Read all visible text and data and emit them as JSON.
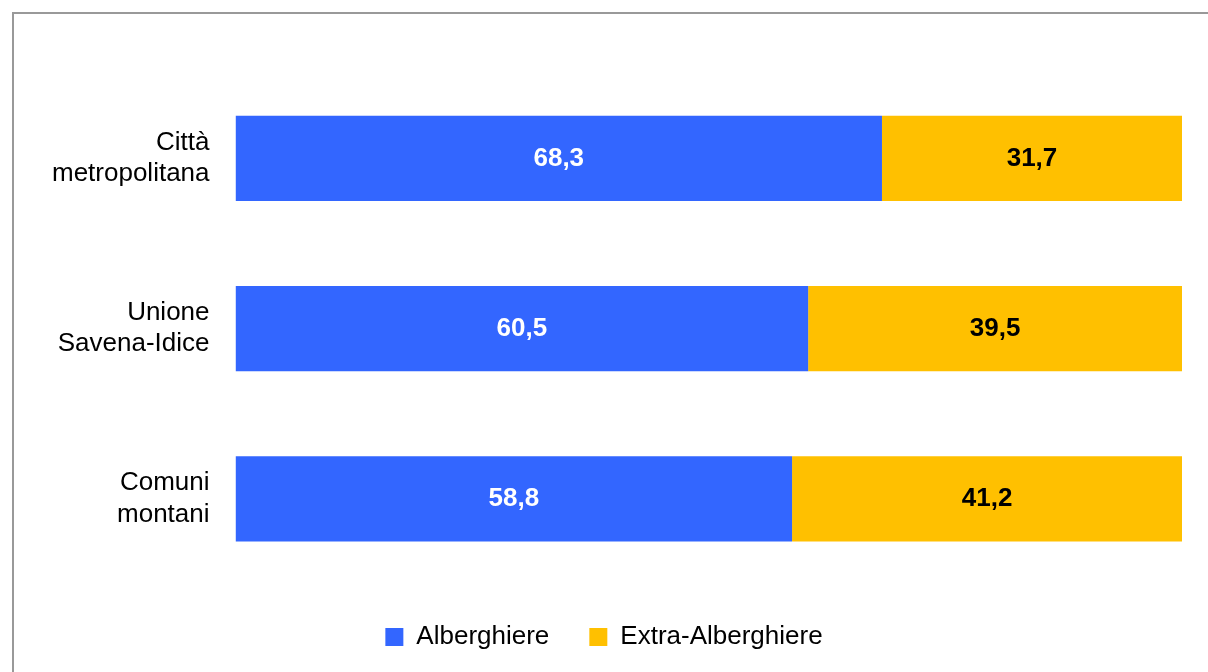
{
  "chart_data": {
    "type": "bar",
    "orientation": "horizontal",
    "stacked": true,
    "categories": [
      "Città metropolitana",
      "Unione Savena-Idice",
      "Comuni montani"
    ],
    "series": [
      {
        "name": "Alberghiere",
        "color": "#3366ff",
        "values": [
          68.3,
          60.5,
          58.8
        ],
        "value_labels": [
          "68,3",
          "60,5",
          "58,8"
        ]
      },
      {
        "name": "Extra-Alberghiere",
        "color": "#ffc000",
        "values": [
          31.7,
          39.5,
          41.2
        ],
        "value_labels": [
          "31,7",
          "39,5",
          "41,2"
        ]
      }
    ],
    "xlim": [
      0,
      100
    ],
    "tick_labels": "y",
    "grid": false,
    "legend": "bottom"
  }
}
